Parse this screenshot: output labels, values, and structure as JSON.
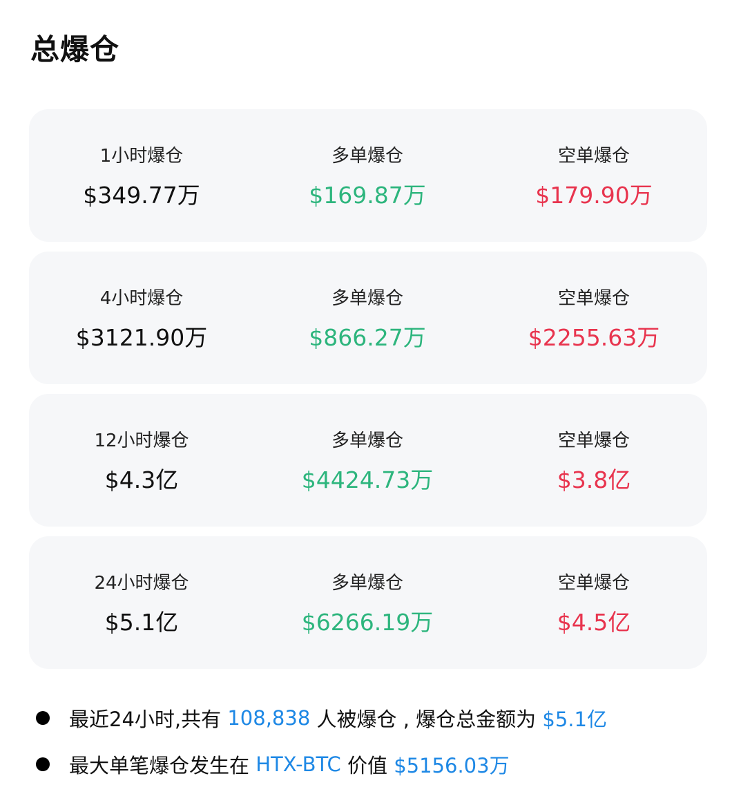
{
  "title": "总爆仓",
  "colors": {
    "long": "#2db57d",
    "short": "#e8344e",
    "link": "#1e88e5"
  },
  "cards": [
    {
      "period_label": "1小时爆仓",
      "total": "$349.77万",
      "long_label": "多单爆仓",
      "long": "$169.87万",
      "short_label": "空单爆仓",
      "short": "$179.90万"
    },
    {
      "period_label": "4小时爆仓",
      "total": "$3121.90万",
      "long_label": "多单爆仓",
      "long": "$866.27万",
      "short_label": "空单爆仓",
      "short": "$2255.63万"
    },
    {
      "period_label": "12小时爆仓",
      "total": "$4.3亿",
      "long_label": "多单爆仓",
      "long": "$4424.73万",
      "short_label": "空单爆仓",
      "short": "$3.8亿"
    },
    {
      "period_label": "24小时爆仓",
      "total": "$5.1亿",
      "long_label": "多单爆仓",
      "long": "$6266.19万",
      "short_label": "空单爆仓",
      "short": "$4.5亿"
    }
  ],
  "notes": [
    {
      "p1": "最近24小时,共有 ",
      "count": "108,838",
      "p2": " 人被爆仓 , 爆仓总金额为 ",
      "amount": "$5.1亿"
    },
    {
      "p1": "最大单笔爆仓发生在 ",
      "pair": "HTX-BTC",
      "p2": " 价值 ",
      "amount": "$5156.03万"
    }
  ]
}
